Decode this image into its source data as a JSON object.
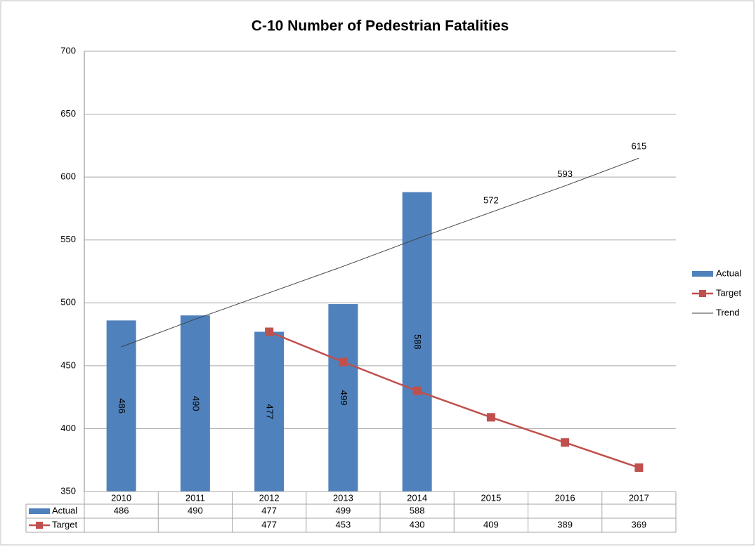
{
  "chart_data": {
    "type": "bar",
    "title": "C-10 Number of Pedestrian Fatalities",
    "categories": [
      "2010",
      "2011",
      "2012",
      "2013",
      "2014",
      "2015",
      "2016",
      "2017"
    ],
    "series": [
      {
        "name": "Actual",
        "type": "bar",
        "color": "#4f81bd",
        "values": [
          486,
          490,
          477,
          499,
          588,
          null,
          null,
          null
        ]
      },
      {
        "name": "Target",
        "type": "line",
        "color": "#c0504d",
        "values": [
          null,
          null,
          477,
          453,
          430,
          409,
          389,
          369
        ]
      },
      {
        "name": "Trend",
        "type": "trend",
        "color": "#404040",
        "values": [
          465,
          487,
          508,
          529,
          551,
          572,
          593,
          615
        ],
        "value_labels": [
          null,
          null,
          null,
          null,
          null,
          "572",
          "593",
          "615"
        ]
      }
    ],
    "ylim": [
      350,
      700
    ],
    "yticks": [
      350,
      400,
      450,
      500,
      550,
      600,
      650,
      700
    ],
    "grid": true,
    "legend": "right",
    "data_table": true
  }
}
